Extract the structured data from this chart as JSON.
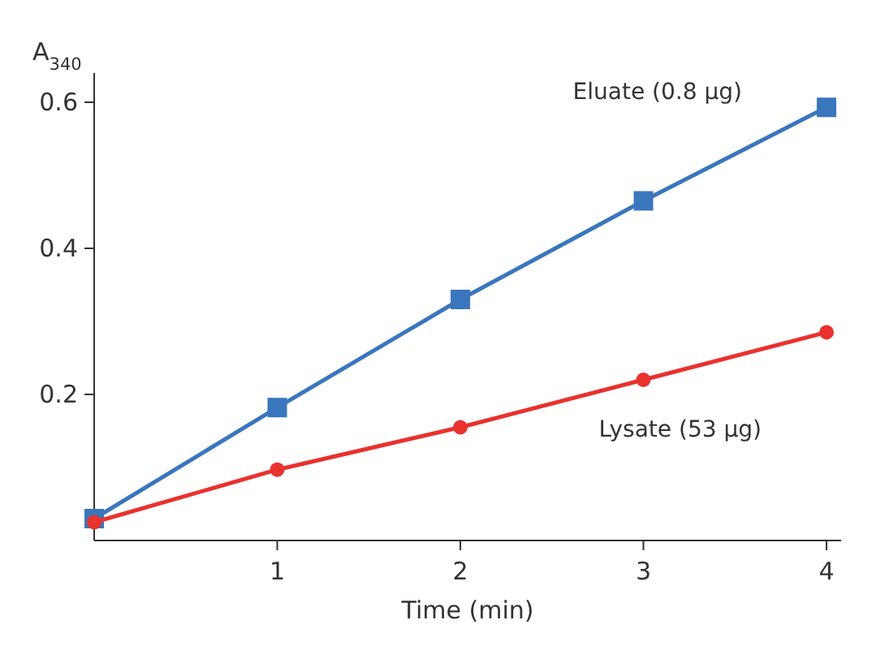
{
  "chart_data": {
    "type": "line",
    "ylabel": "A$_{340}$",
    "xlabel": "Time (min)",
    "x": [
      0,
      1,
      2,
      3,
      4
    ],
    "xlim": [
      0,
      4.08
    ],
    "xticks": [
      1,
      2,
      3,
      4
    ],
    "ylim": [
      0,
      0.64
    ],
    "yticks": [
      0.2,
      0.4,
      0.6
    ],
    "grid": false,
    "legend": false,
    "series": [
      {
        "name": "Eluate (0.8 µg)",
        "color": "#3a76bd",
        "marker": "square",
        "values": [
          0.03,
          0.182,
          0.33,
          0.465,
          0.593
        ]
      },
      {
        "name": "Lysate (53 µg)",
        "color": "#e8322e",
        "marker": "circle",
        "values": [
          0.025,
          0.097,
          0.155,
          0.22,
          0.285
        ]
      }
    ]
  }
}
